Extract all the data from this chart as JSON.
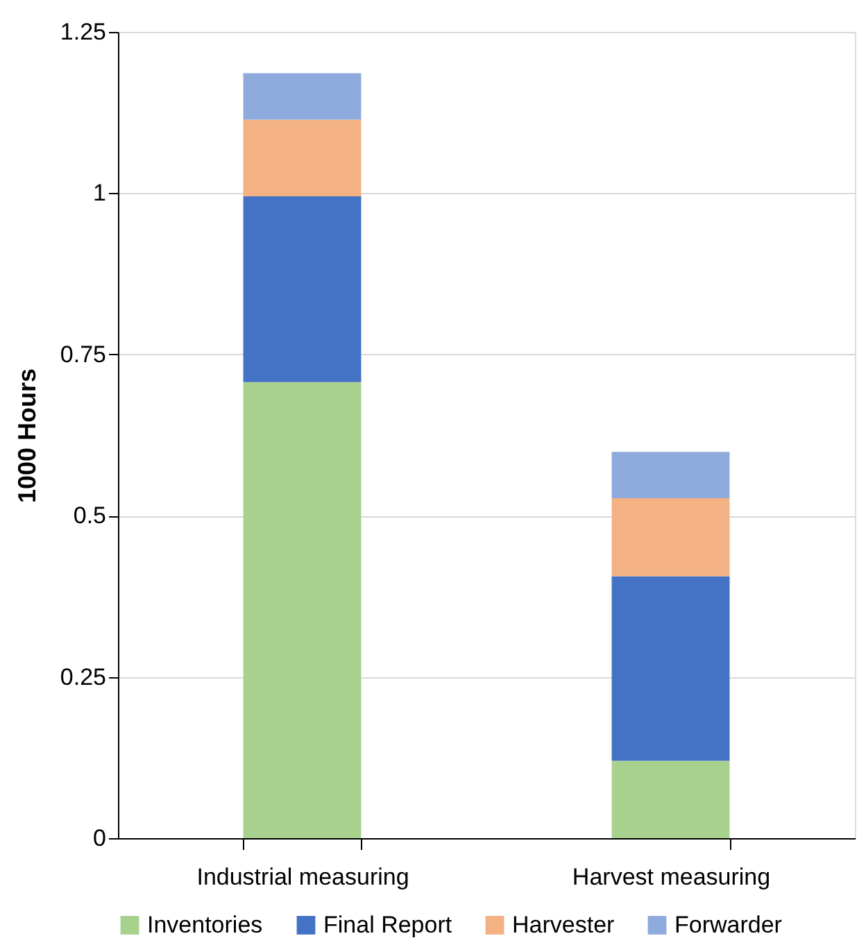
{
  "chart_data": {
    "type": "bar",
    "stacked": true,
    "ylabel": "1000 Hours",
    "categories": [
      "Industrial measuring",
      "Harvest measuring"
    ],
    "series": [
      {
        "name": "Inventories",
        "color": "#a9d18e",
        "values": [
          0.707,
          0.12
        ]
      },
      {
        "name": "Final Report",
        "color": "#4472c4",
        "values": [
          0.288,
          0.286
        ]
      },
      {
        "name": "Harvester",
        "color": "#f4b183",
        "values": [
          0.119,
          0.121
        ]
      },
      {
        "name": "Forwarder",
        "color": "#8faadc",
        "values": [
          0.072,
          0.072
        ]
      }
    ],
    "ylim": [
      0,
      1.25
    ],
    "yticks": [
      0,
      0.25,
      0.5,
      0.75,
      1,
      1.25
    ],
    "grid": "y",
    "legend": "bottom"
  }
}
